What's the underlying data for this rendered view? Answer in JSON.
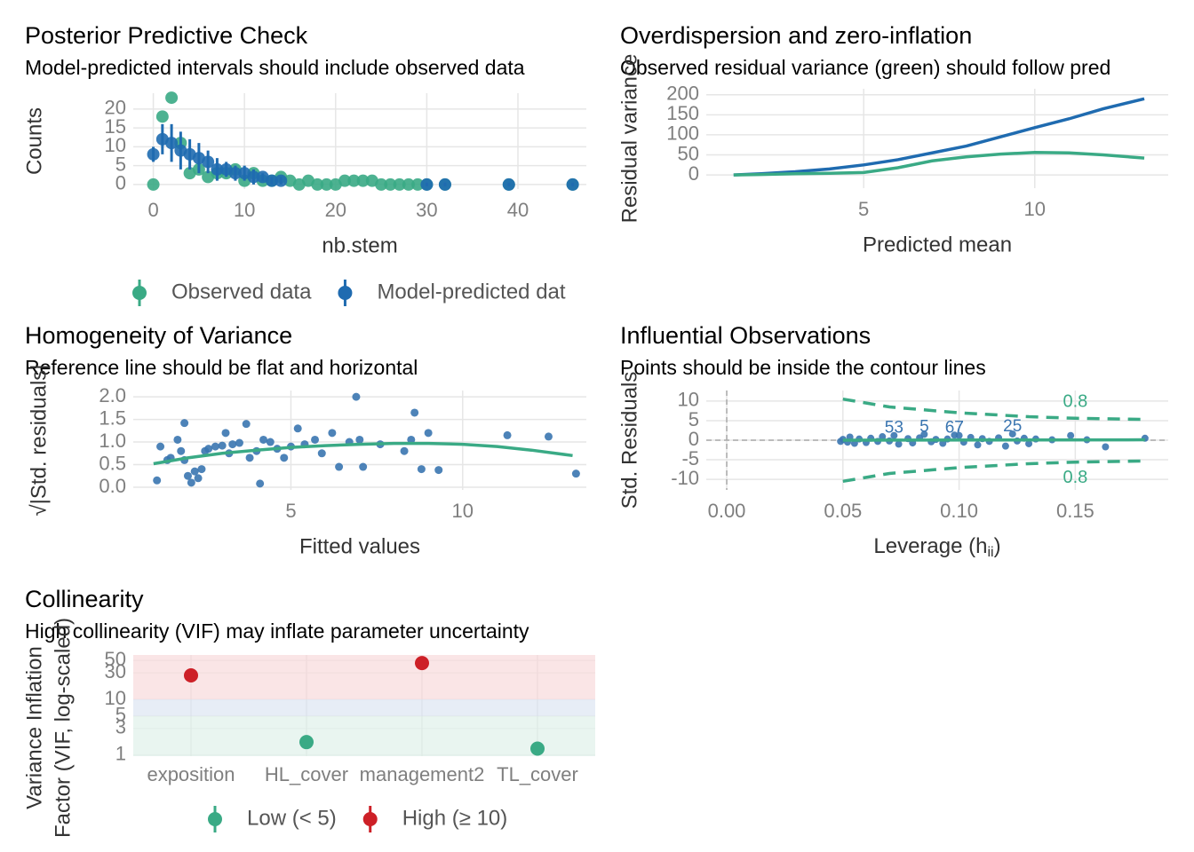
{
  "chart_data": [
    {
      "type": "scatter",
      "title": "Posterior Predictive Check",
      "subtitle": "Model-predicted intervals should include observed data",
      "xlabel": "nb.stem",
      "ylabel": "Counts",
      "xlim": [
        -2.2,
        47.5
      ],
      "xticks": [
        0,
        10,
        20,
        30,
        40
      ],
      "ylim": [
        -1.2,
        24.2
      ],
      "yticks": [
        0,
        5,
        10,
        15,
        20
      ],
      "grid": true,
      "legend": "bottom",
      "series": [
        {
          "name": "Observed data",
          "color": "#3aaa85",
          "style": "points",
          "x": [
            0,
            1,
            2,
            3,
            4,
            5,
            6,
            7,
            8,
            9,
            10,
            11,
            12,
            13,
            14,
            15,
            16,
            17,
            18,
            19,
            20,
            21,
            22,
            23,
            24,
            25,
            26,
            27,
            28,
            29,
            30,
            32,
            39,
            46
          ],
          "values": [
            0,
            18,
            23,
            11,
            3,
            4,
            2,
            3,
            3,
            4,
            1,
            3,
            1,
            1,
            2,
            1,
            0,
            1,
            0,
            0,
            0,
            1,
            1,
            1,
            1,
            0,
            0,
            0,
            0,
            0,
            0,
            0,
            0,
            0
          ]
        },
        {
          "name": "Model-predicted dat",
          "color": "#1f6bb0",
          "style": "points",
          "x": [
            0,
            1,
            2,
            3,
            4,
            5,
            6,
            7,
            8,
            9,
            10,
            11,
            12,
            13,
            14,
            30,
            32,
            39,
            46
          ],
          "values": [
            8,
            12,
            11,
            9,
            8,
            7,
            6,
            4,
            4,
            3,
            3,
            2,
            2,
            1,
            1,
            0,
            0,
            0,
            0
          ],
          "errors": [
            2,
            4,
            5,
            5,
            4,
            4,
            3,
            3,
            2,
            2,
            2,
            2,
            1,
            1,
            1,
            0.5,
            0.5,
            0.5,
            0.5
          ]
        }
      ]
    },
    {
      "type": "line",
      "title": "Overdispersion and zero-inflation",
      "subtitle": "Observed residual variance (green) should follow pred",
      "xlabel": "Predicted mean",
      "ylabel": "Residual variance",
      "xlim": [
        0.4,
        13.9
      ],
      "xticks": [
        5,
        10
      ],
      "ylim": [
        -33,
        215
      ],
      "yticks": [
        0,
        50,
        100,
        150,
        200
      ],
      "grid": true,
      "x": [
        1.2,
        2,
        3,
        4,
        5,
        6,
        7,
        8,
        9,
        10,
        11,
        12,
        13.2
      ],
      "series": [
        {
          "color": "#1f6bb0",
          "style": "line",
          "values": [
            0,
            3,
            8,
            15,
            25,
            38,
            55,
            72,
            95,
            118,
            140,
            165,
            190
          ]
        },
        {
          "color": "#3aaa85",
          "style": "line",
          "values": [
            0,
            1,
            3,
            4,
            6,
            18,
            35,
            45,
            52,
            56,
            55,
            50,
            42
          ]
        }
      ]
    },
    {
      "type": "scatter",
      "title": "Homogeneity of Variance",
      "subtitle": "Reference line should be flat and horizontal",
      "xlabel": "Fitted values",
      "ylabel": "√|Std. residuals|",
      "xlim": [
        0.41,
        13.6
      ],
      "xticks": [
        5,
        10
      ],
      "ylim": [
        -0.06,
        2.14
      ],
      "yticks": [
        {
          "value": 0,
          "label": "0.0"
        },
        0.5,
        {
          "value": 1,
          "label": "1.0"
        },
        1.5,
        {
          "value": 2,
          "label": "2.0"
        }
      ],
      "grid": true,
      "series": [
        {
          "color": "#3a75b0",
          "style": "points",
          "x": [
            1.1,
            1.2,
            1.4,
            1.5,
            1.7,
            1.8,
            1.9,
            1.9,
            2.0,
            2.1,
            2.2,
            2.3,
            2.4,
            2.5,
            2.6,
            2.8,
            3.0,
            3.1,
            3.2,
            3.3,
            3.5,
            3.7,
            3.8,
            4.0,
            4.1,
            4.2,
            4.4,
            4.6,
            4.8,
            5.0,
            5.2,
            5.4,
            5.7,
            5.9,
            6.2,
            6.4,
            6.7,
            6.9,
            7.0,
            7.1,
            7.6,
            8.3,
            8.5,
            8.6,
            8.8,
            9.0,
            9.3,
            11.3,
            12.5,
            13.3
          ],
          "values": [
            0.15,
            0.9,
            0.6,
            0.65,
            1.05,
            0.8,
            1.42,
            0.6,
            0.25,
            0.1,
            0.35,
            0.2,
            0.4,
            0.8,
            0.85,
            0.9,
            0.92,
            1.2,
            0.75,
            0.95,
            0.98,
            1.4,
            0.65,
            0.8,
            0.08,
            1.05,
            1.0,
            0.85,
            0.65,
            0.9,
            1.3,
            0.95,
            1.05,
            0.75,
            1.2,
            0.45,
            1.0,
            2.0,
            1.05,
            0.45,
            0.95,
            0.8,
            1.05,
            1.65,
            0.4,
            1.2,
            0.38,
            1.15,
            1.12,
            0.3
          ]
        },
        {
          "color": "#3aaa85",
          "style": "line",
          "x": [
            1,
            2,
            3,
            4,
            5,
            6,
            7,
            8,
            9,
            10,
            11,
            12,
            13.2
          ],
          "values": [
            0.52,
            0.65,
            0.75,
            0.82,
            0.88,
            0.92,
            0.95,
            0.97,
            0.97,
            0.95,
            0.9,
            0.82,
            0.7
          ]
        }
      ]
    },
    {
      "type": "scatter",
      "title": "Influential Observations",
      "subtitle": "Points should be inside the contour lines",
      "xlabel": {
        "text": "Leverage (h",
        "subscript": "ii",
        "suffix": ")"
      },
      "ylabel": "Std. Residuals",
      "xlim": [
        -0.0088,
        0.19
      ],
      "xticks": [
        {
          "value": 0,
          "label": "0.00"
        },
        0.05,
        {
          "value": 0.1,
          "label": "0.10"
        },
        0.15
      ],
      "ylim": [
        -12.7,
        12.7
      ],
      "yticks": [
        -10,
        -5,
        0,
        5,
        10
      ],
      "grid": true,
      "hline": 0,
      "vline": 0,
      "series": [
        {
          "color": "#3a75b0",
          "style": "points",
          "x": [
            0.049,
            0.05,
            0.052,
            0.053,
            0.055,
            0.057,
            0.06,
            0.062,
            0.065,
            0.067,
            0.07,
            0.072,
            0.074,
            0.078,
            0.08,
            0.083,
            0.085,
            0.088,
            0.09,
            0.093,
            0.095,
            0.098,
            0.1,
            0.102,
            0.105,
            0.108,
            0.11,
            0.113,
            0.117,
            0.12,
            0.123,
            0.125,
            0.128,
            0.13,
            0.133,
            0.14,
            0.148,
            0.155,
            0.163,
            0.18
          ],
          "values": [
            -0.3,
            0.2,
            -0.5,
            0.8,
            -0.8,
            0.3,
            -0.6,
            0.5,
            -0.3,
            0.9,
            -0.2,
            1.2,
            -1,
            0.4,
            -0.7,
            0.6,
            1.5,
            -0.4,
            0.2,
            -0.8,
            0.3,
            1.3,
            1.2,
            -0.5,
            0.7,
            -1.2,
            0.4,
            -0.3,
            0.6,
            -1.5,
            1.6,
            -0.2,
            0.5,
            -0.9,
            0.3,
            0.1,
            1.2,
            0.1,
            -1.7,
            0.5
          ],
          "point_labels": [
            null,
            null,
            null,
            null,
            null,
            null,
            null,
            null,
            null,
            null,
            null,
            "53",
            null,
            null,
            null,
            null,
            "5",
            null,
            null,
            null,
            null,
            "67",
            "7",
            null,
            null,
            null,
            null,
            null,
            null,
            null,
            "25",
            null,
            null,
            null,
            null,
            null,
            null,
            null,
            null,
            null
          ]
        },
        {
          "color": "#3aaa85",
          "style": "line",
          "x": [
            0.05,
            0.18
          ],
          "values": [
            0,
            0.1
          ]
        },
        {
          "color": "#3aaa85",
          "style": "dashed",
          "label": "0.8",
          "x": [
            0.05,
            0.07,
            0.1,
            0.13,
            0.15,
            0.18
          ],
          "values": [
            10.5,
            8.5,
            7,
            6,
            5.6,
            5.3
          ]
        },
        {
          "color": "#3aaa85",
          "style": "dashed",
          "label": "0.8",
          "x": [
            0.05,
            0.07,
            0.1,
            0.13,
            0.15,
            0.18
          ],
          "values": [
            -10.5,
            -8.5,
            -7,
            -6,
            -5.6,
            -5.3
          ]
        }
      ]
    },
    {
      "type": "dot",
      "title": "Collinearity",
      "subtitle": "High collinearity (VIF) may inflate parameter uncertainty",
      "ylabel": [
        "Variance Inflation",
        "Factor (VIF, log-scaled)"
      ],
      "log": true,
      "categories": [
        "exposition",
        "HL_cover",
        "management2",
        "TL_cover"
      ],
      "ylim": [
        0.95,
        63
      ],
      "yticks": [
        1,
        3,
        5,
        10,
        30,
        50
      ],
      "grid": true,
      "legend": "bottom",
      "bands": [
        {
          "from": 0.95,
          "to": 5,
          "color": "#e2f2eb"
        },
        {
          "from": 5,
          "to": 10,
          "color": "#dfe7f3"
        },
        {
          "from": 10,
          "to": 63,
          "color": "#f8dcdd"
        }
      ],
      "series": [
        {
          "name": "Low (< 5)",
          "color": "#3aaa85",
          "values": [
            null,
            1.7,
            null,
            1.3
          ]
        },
        {
          "name": "High (≥ 10)",
          "color": "#cd2027",
          "values": [
            27,
            null,
            45,
            null
          ]
        }
      ]
    }
  ]
}
